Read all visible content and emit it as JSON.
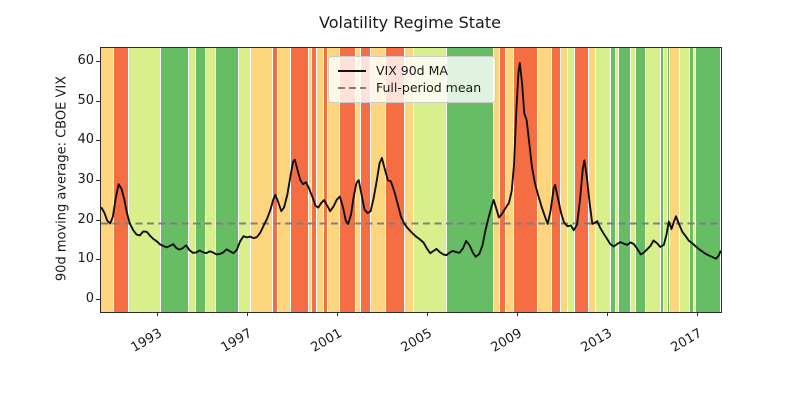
{
  "title": "Volatility Regime State",
  "axes": {
    "ylabel": "90d moving average: CBOE VIX",
    "yticks": [
      0,
      10,
      20,
      30,
      40,
      50,
      60
    ],
    "xticks": [
      1993,
      1997,
      2001,
      2005,
      2009,
      2013,
      2017
    ]
  },
  "legend": {
    "items": [
      {
        "label": "VIX 90d MA",
        "style": "solid",
        "color": "#111111"
      },
      {
        "label": "Full-period mean",
        "style": "dashed",
        "color": "#7f7f7f"
      }
    ]
  },
  "chart_data": {
    "type": "line",
    "title": "Volatility Regime State",
    "xlabel": "",
    "ylabel": "90d moving average: CBOE VIX",
    "xlim": [
      1990.47,
      2018.02
    ],
    "ylim": [
      -3,
      63.5
    ],
    "grid": false,
    "legend_position": "upper center",
    "line_color": "#111111",
    "mean_line_color": "#7f7f7f",
    "full_period_mean": 19.3,
    "regime_colors": {
      "crisis": "#f46d43",
      "elevated": "#fdd57e",
      "normal": "#d9ef8b",
      "calm": "#66bd63"
    },
    "regime_bands": [
      {
        "start": 1990.47,
        "end": 1991.04,
        "state": "elevated"
      },
      {
        "start": 1991.04,
        "end": 1991.71,
        "state": "crisis"
      },
      {
        "start": 1991.71,
        "end": 1993.13,
        "state": "normal"
      },
      {
        "start": 1993.13,
        "end": 1994.38,
        "state": "calm"
      },
      {
        "start": 1994.38,
        "end": 1994.69,
        "state": "normal"
      },
      {
        "start": 1994.69,
        "end": 1995.13,
        "state": "calm"
      },
      {
        "start": 1995.13,
        "end": 1995.58,
        "state": "normal"
      },
      {
        "start": 1995.58,
        "end": 1996.6,
        "state": "calm"
      },
      {
        "start": 1996.6,
        "end": 1997.13,
        "state": "normal"
      },
      {
        "start": 1997.13,
        "end": 1998.11,
        "state": "elevated"
      },
      {
        "start": 1998.11,
        "end": 1998.33,
        "state": "crisis"
      },
      {
        "start": 1998.33,
        "end": 1998.91,
        "state": "elevated"
      },
      {
        "start": 1998.91,
        "end": 1999.71,
        "state": "crisis"
      },
      {
        "start": 1999.71,
        "end": 1999.84,
        "state": "elevated"
      },
      {
        "start": 1999.84,
        "end": 2000.07,
        "state": "crisis"
      },
      {
        "start": 2000.07,
        "end": 2000.38,
        "state": "elevated"
      },
      {
        "start": 2000.38,
        "end": 2000.56,
        "state": "crisis"
      },
      {
        "start": 2000.56,
        "end": 2001.09,
        "state": "elevated"
      },
      {
        "start": 2001.09,
        "end": 2001.8,
        "state": "crisis"
      },
      {
        "start": 2001.8,
        "end": 2002.02,
        "state": "elevated"
      },
      {
        "start": 2002.02,
        "end": 2002.47,
        "state": "crisis"
      },
      {
        "start": 2002.47,
        "end": 2003.13,
        "state": "elevated"
      },
      {
        "start": 2003.13,
        "end": 2003.98,
        "state": "crisis"
      },
      {
        "start": 2003.98,
        "end": 2004.38,
        "state": "elevated"
      },
      {
        "start": 2004.38,
        "end": 2005.84,
        "state": "normal"
      },
      {
        "start": 2005.84,
        "end": 2007.93,
        "state": "calm"
      },
      {
        "start": 2007.93,
        "end": 2008.2,
        "state": "elevated"
      },
      {
        "start": 2008.2,
        "end": 2008.47,
        "state": "crisis"
      },
      {
        "start": 2008.47,
        "end": 2008.82,
        "state": "elevated"
      },
      {
        "start": 2008.82,
        "end": 2009.89,
        "state": "crisis"
      },
      {
        "start": 2009.89,
        "end": 2010.51,
        "state": "elevated"
      },
      {
        "start": 2010.51,
        "end": 2010.91,
        "state": "crisis"
      },
      {
        "start": 2010.91,
        "end": 2011.22,
        "state": "elevated"
      },
      {
        "start": 2011.22,
        "end": 2011.53,
        "state": "normal"
      },
      {
        "start": 2011.53,
        "end": 2012.16,
        "state": "crisis"
      },
      {
        "start": 2012.16,
        "end": 2012.47,
        "state": "elevated"
      },
      {
        "start": 2012.47,
        "end": 2013.13,
        "state": "normal"
      },
      {
        "start": 2013.13,
        "end": 2013.36,
        "state": "calm"
      },
      {
        "start": 2013.36,
        "end": 2013.49,
        "state": "normal"
      },
      {
        "start": 2013.49,
        "end": 2014.02,
        "state": "calm"
      },
      {
        "start": 2014.02,
        "end": 2014.24,
        "state": "normal"
      },
      {
        "start": 2014.24,
        "end": 2014.69,
        "state": "calm"
      },
      {
        "start": 2014.69,
        "end": 2015.36,
        "state": "normal"
      },
      {
        "start": 2015.36,
        "end": 2015.49,
        "state": "calm"
      },
      {
        "start": 2015.49,
        "end": 2015.67,
        "state": "normal"
      },
      {
        "start": 2015.67,
        "end": 2015.76,
        "state": "calm"
      },
      {
        "start": 2015.76,
        "end": 2016.2,
        "state": "elevated"
      },
      {
        "start": 2016.2,
        "end": 2016.64,
        "state": "normal"
      },
      {
        "start": 2016.64,
        "end": 2016.82,
        "state": "calm"
      },
      {
        "start": 2016.82,
        "end": 2016.91,
        "state": "normal"
      },
      {
        "start": 2016.91,
        "end": 2018.02,
        "state": "calm"
      }
    ],
    "series": [
      {
        "name": "VIX 90d MA",
        "points": [
          [
            1990.5,
            23.2
          ],
          [
            1990.62,
            22.0
          ],
          [
            1990.75,
            20.0
          ],
          [
            1990.88,
            19.3
          ],
          [
            1991.0,
            21.0
          ],
          [
            1991.12,
            25.5
          ],
          [
            1991.25,
            29.2
          ],
          [
            1991.38,
            28.0
          ],
          [
            1991.5,
            25.5
          ],
          [
            1991.62,
            22.0
          ],
          [
            1991.75,
            19.3
          ],
          [
            1991.9,
            17.6
          ],
          [
            1992.05,
            16.5
          ],
          [
            1992.2,
            16.3
          ],
          [
            1992.35,
            17.3
          ],
          [
            1992.5,
            17.2
          ],
          [
            1992.65,
            16.2
          ],
          [
            1992.8,
            15.4
          ],
          [
            1992.95,
            14.8
          ],
          [
            1993.1,
            14.0
          ],
          [
            1993.25,
            13.6
          ],
          [
            1993.4,
            13.3
          ],
          [
            1993.55,
            13.7
          ],
          [
            1993.68,
            14.1
          ],
          [
            1993.82,
            13.1
          ],
          [
            1993.95,
            12.7
          ],
          [
            1994.1,
            13.1
          ],
          [
            1994.25,
            13.8
          ],
          [
            1994.4,
            12.6
          ],
          [
            1994.55,
            11.9
          ],
          [
            1994.7,
            12.0
          ],
          [
            1994.85,
            12.5
          ],
          [
            1995.0,
            12.1
          ],
          [
            1995.15,
            11.8
          ],
          [
            1995.3,
            12.3
          ],
          [
            1995.45,
            12.0
          ],
          [
            1995.6,
            11.5
          ],
          [
            1995.75,
            11.6
          ],
          [
            1995.9,
            12.0
          ],
          [
            1996.05,
            12.8
          ],
          [
            1996.2,
            12.3
          ],
          [
            1996.35,
            11.8
          ],
          [
            1996.5,
            12.6
          ],
          [
            1996.65,
            14.8
          ],
          [
            1996.8,
            16.1
          ],
          [
            1996.95,
            15.8
          ],
          [
            1997.1,
            16.0
          ],
          [
            1997.25,
            15.6
          ],
          [
            1997.4,
            15.9
          ],
          [
            1997.55,
            17.0
          ],
          [
            1997.7,
            18.8
          ],
          [
            1997.85,
            20.5
          ],
          [
            1998.0,
            22.8
          ],
          [
            1998.12,
            25.3
          ],
          [
            1998.22,
            26.5
          ],
          [
            1998.35,
            24.6
          ],
          [
            1998.48,
            22.4
          ],
          [
            1998.6,
            23.3
          ],
          [
            1998.75,
            26.5
          ],
          [
            1998.88,
            31.0
          ],
          [
            1999.0,
            34.8
          ],
          [
            1999.08,
            35.4
          ],
          [
            1999.2,
            32.8
          ],
          [
            1999.32,
            30.3
          ],
          [
            1999.45,
            29.2
          ],
          [
            1999.58,
            29.7
          ],
          [
            1999.72,
            28.0
          ],
          [
            1999.85,
            26.2
          ],
          [
            2000.0,
            23.8
          ],
          [
            2000.12,
            23.3
          ],
          [
            2000.25,
            24.4
          ],
          [
            2000.38,
            25.2
          ],
          [
            2000.52,
            23.8
          ],
          [
            2000.65,
            22.4
          ],
          [
            2000.8,
            23.6
          ],
          [
            2000.95,
            25.3
          ],
          [
            2001.08,
            26.1
          ],
          [
            2001.22,
            23.5
          ],
          [
            2001.35,
            20.0
          ],
          [
            2001.45,
            19.2
          ],
          [
            2001.58,
            21.5
          ],
          [
            2001.7,
            26.0
          ],
          [
            2001.82,
            29.5
          ],
          [
            2001.92,
            30.2
          ],
          [
            2002.05,
            26.5
          ],
          [
            2002.18,
            22.8
          ],
          [
            2002.32,
            21.9
          ],
          [
            2002.45,
            22.4
          ],
          [
            2002.58,
            25.5
          ],
          [
            2002.72,
            30.0
          ],
          [
            2002.85,
            34.5
          ],
          [
            2002.95,
            35.8
          ],
          [
            2003.08,
            33.0
          ],
          [
            2003.22,
            30.2
          ],
          [
            2003.35,
            29.9
          ],
          [
            2003.5,
            27.5
          ],
          [
            2003.65,
            24.3
          ],
          [
            2003.8,
            21.0
          ],
          [
            2003.95,
            19.2
          ],
          [
            2004.1,
            18.1
          ],
          [
            2004.28,
            17.0
          ],
          [
            2004.45,
            16.1
          ],
          [
            2004.62,
            15.4
          ],
          [
            2004.8,
            14.5
          ],
          [
            2004.95,
            13.0
          ],
          [
            2005.1,
            11.8
          ],
          [
            2005.25,
            12.4
          ],
          [
            2005.38,
            12.9
          ],
          [
            2005.52,
            12.1
          ],
          [
            2005.68,
            11.5
          ],
          [
            2005.82,
            11.3
          ],
          [
            2005.95,
            11.9
          ],
          [
            2006.1,
            12.4
          ],
          [
            2006.25,
            12.1
          ],
          [
            2006.4,
            11.9
          ],
          [
            2006.55,
            13.0
          ],
          [
            2006.7,
            14.9
          ],
          [
            2006.85,
            13.8
          ],
          [
            2007.0,
            11.9
          ],
          [
            2007.12,
            10.9
          ],
          [
            2007.28,
            11.6
          ],
          [
            2007.42,
            13.8
          ],
          [
            2007.55,
            17.5
          ],
          [
            2007.7,
            21.0
          ],
          [
            2007.82,
            23.5
          ],
          [
            2007.92,
            25.2
          ],
          [
            2008.05,
            22.8
          ],
          [
            2008.15,
            20.8
          ],
          [
            2008.3,
            21.8
          ],
          [
            2008.45,
            23.2
          ],
          [
            2008.6,
            24.5
          ],
          [
            2008.72,
            27.5
          ],
          [
            2008.82,
            34.0
          ],
          [
            2008.92,
            47.0
          ],
          [
            2009.02,
            57.5
          ],
          [
            2009.08,
            59.7
          ],
          [
            2009.18,
            54.5
          ],
          [
            2009.28,
            47.0
          ],
          [
            2009.38,
            45.4
          ],
          [
            2009.5,
            39.5
          ],
          [
            2009.62,
            33.5
          ],
          [
            2009.75,
            29.5
          ],
          [
            2009.9,
            26.3
          ],
          [
            2010.05,
            23.5
          ],
          [
            2010.2,
            21.0
          ],
          [
            2010.32,
            19.2
          ],
          [
            2010.45,
            22.5
          ],
          [
            2010.58,
            28.0
          ],
          [
            2010.65,
            29.0
          ],
          [
            2010.78,
            25.5
          ],
          [
            2010.92,
            21.8
          ],
          [
            2011.05,
            19.5
          ],
          [
            2011.2,
            18.6
          ],
          [
            2011.35,
            18.8
          ],
          [
            2011.48,
            17.6
          ],
          [
            2011.62,
            19.0
          ],
          [
            2011.75,
            25.0
          ],
          [
            2011.88,
            33.0
          ],
          [
            2011.95,
            35.2
          ],
          [
            2012.05,
            31.5
          ],
          [
            2012.18,
            24.5
          ],
          [
            2012.3,
            19.2
          ],
          [
            2012.42,
            19.5
          ],
          [
            2012.52,
            19.9
          ],
          [
            2012.65,
            18.2
          ],
          [
            2012.8,
            16.8
          ],
          [
            2012.95,
            15.5
          ],
          [
            2013.1,
            14.1
          ],
          [
            2013.25,
            13.5
          ],
          [
            2013.4,
            14.1
          ],
          [
            2013.55,
            14.6
          ],
          [
            2013.7,
            14.2
          ],
          [
            2013.85,
            13.9
          ],
          [
            2014.0,
            14.5
          ],
          [
            2014.15,
            14.1
          ],
          [
            2014.3,
            12.9
          ],
          [
            2014.45,
            11.5
          ],
          [
            2014.58,
            11.9
          ],
          [
            2014.72,
            12.7
          ],
          [
            2014.88,
            13.6
          ],
          [
            2015.02,
            15.0
          ],
          [
            2015.18,
            14.3
          ],
          [
            2015.32,
            13.4
          ],
          [
            2015.48,
            13.9
          ],
          [
            2015.6,
            16.5
          ],
          [
            2015.7,
            19.8
          ],
          [
            2015.82,
            17.9
          ],
          [
            2015.92,
            19.6
          ],
          [
            2016.02,
            21.1
          ],
          [
            2016.15,
            19.2
          ],
          [
            2016.3,
            17.2
          ],
          [
            2016.45,
            16.1
          ],
          [
            2016.6,
            14.9
          ],
          [
            2016.75,
            14.3
          ],
          [
            2016.9,
            13.5
          ],
          [
            2017.05,
            12.8
          ],
          [
            2017.2,
            12.2
          ],
          [
            2017.35,
            11.6
          ],
          [
            2017.5,
            11.2
          ],
          [
            2017.65,
            10.8
          ],
          [
            2017.8,
            10.4
          ],
          [
            2017.92,
            11.2
          ],
          [
            2018.0,
            12.3
          ]
        ]
      }
    ]
  }
}
